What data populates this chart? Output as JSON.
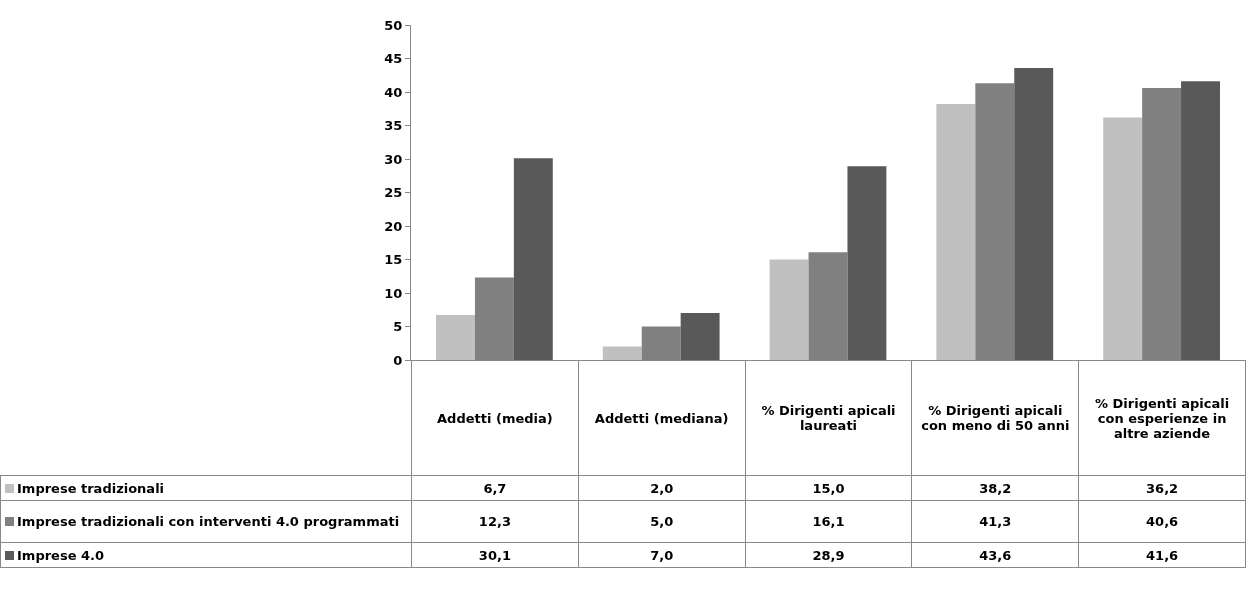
{
  "chart_data": {
    "type": "bar",
    "categories": [
      "Addetti (media)",
      "Addetti (mediana)",
      "% Dirigenti apicali laureati",
      "% Dirigenti apicali con meno di 50 anni",
      "% Dirigenti apicali con esperienze in altre aziende"
    ],
    "series": [
      {
        "name": "Imprese tradizionali",
        "color": "#c0c0c0",
        "values": [
          6.7,
          2.0,
          15.0,
          38.2,
          36.2
        ],
        "value_labels": [
          "6,7",
          "2,0",
          "15,0",
          "38,2",
          "36,2"
        ]
      },
      {
        "name": "Imprese tradizionali con interventi 4.0 programmati",
        "color": "#808080",
        "values": [
          12.3,
          5.0,
          16.1,
          41.3,
          40.6
        ],
        "value_labels": [
          "12,3",
          "5,0",
          "16,1",
          "41,3",
          "40,6"
        ]
      },
      {
        "name": "Imprese 4.0",
        "color": "#595959",
        "values": [
          30.1,
          7.0,
          28.9,
          43.6,
          41.6
        ],
        "value_labels": [
          "30,1",
          "7,0",
          "28,9",
          "43,6",
          "41,6"
        ]
      }
    ],
    "ylim": [
      0,
      50
    ],
    "yticks": [
      0,
      5,
      10,
      15,
      20,
      25,
      30,
      35,
      40,
      45,
      50
    ],
    "grid": false,
    "legend": "bottom"
  }
}
